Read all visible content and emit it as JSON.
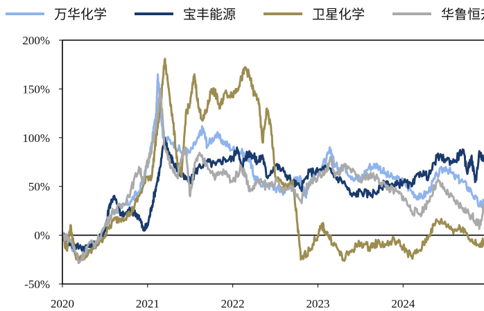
{
  "chart_data": {
    "type": "line",
    "title": "",
    "xlabel": "",
    "ylabel": "",
    "xlim": [
      2020,
      2024.95
    ],
    "ylim": [
      -50,
      200
    ],
    "x_ticks": [
      "2020",
      "2021",
      "2022",
      "2023",
      "2024"
    ],
    "y_ticks": [
      "200%",
      "150%",
      "100%",
      "50%",
      "0%",
      "-50%"
    ],
    "y_tick_values": [
      200,
      150,
      100,
      50,
      0,
      -50
    ],
    "zero_line": true,
    "grid": false,
    "legend_position": "top",
    "series": [
      {
        "name": "万华化学",
        "color": "#8fb4ec",
        "points": [
          [
            2020.0,
            0
          ],
          [
            2020.1,
            -10
          ],
          [
            2020.2,
            -25
          ],
          [
            2020.35,
            -12
          ],
          [
            2020.5,
            5
          ],
          [
            2020.6,
            25
          ],
          [
            2020.7,
            28
          ],
          [
            2020.8,
            35
          ],
          [
            2020.9,
            45
          ],
          [
            2021.0,
            70
          ],
          [
            2021.05,
            95
          ],
          [
            2021.1,
            125
          ],
          [
            2021.12,
            165
          ],
          [
            2021.18,
            100
          ],
          [
            2021.3,
            95
          ],
          [
            2021.4,
            85
          ],
          [
            2021.5,
            85
          ],
          [
            2021.6,
            100
          ],
          [
            2021.65,
            110
          ],
          [
            2021.7,
            92
          ],
          [
            2021.8,
            103
          ],
          [
            2021.9,
            95
          ],
          [
            2022.0,
            88
          ],
          [
            2022.1,
            85
          ],
          [
            2022.2,
            78
          ],
          [
            2022.25,
            60
          ],
          [
            2022.3,
            55
          ],
          [
            2022.4,
            52
          ],
          [
            2022.5,
            48
          ],
          [
            2022.6,
            45
          ],
          [
            2022.7,
            55
          ],
          [
            2022.8,
            58
          ],
          [
            2022.85,
            40
          ],
          [
            2022.9,
            55
          ],
          [
            2023.0,
            65
          ],
          [
            2023.1,
            78
          ],
          [
            2023.15,
            88
          ],
          [
            2023.2,
            70
          ],
          [
            2023.3,
            72
          ],
          [
            2023.4,
            60
          ],
          [
            2023.5,
            58
          ],
          [
            2023.6,
            70
          ],
          [
            2023.7,
            72
          ],
          [
            2023.8,
            62
          ],
          [
            2023.9,
            58
          ],
          [
            2024.0,
            55
          ],
          [
            2024.1,
            45
          ],
          [
            2024.2,
            38
          ],
          [
            2024.3,
            45
          ],
          [
            2024.4,
            62
          ],
          [
            2024.5,
            70
          ],
          [
            2024.6,
            60
          ],
          [
            2024.7,
            55
          ],
          [
            2024.8,
            45
          ],
          [
            2024.9,
            30
          ],
          [
            2024.95,
            35
          ]
        ]
      },
      {
        "name": "宝丰能源",
        "color": "#1a3a6b",
        "points": [
          [
            2020.0,
            0
          ],
          [
            2020.1,
            -10
          ],
          [
            2020.2,
            -12
          ],
          [
            2020.3,
            -12
          ],
          [
            2020.4,
            -8
          ],
          [
            2020.5,
            5
          ],
          [
            2020.55,
            30
          ],
          [
            2020.6,
            40
          ],
          [
            2020.7,
            20
          ],
          [
            2020.8,
            25
          ],
          [
            2020.9,
            20
          ],
          [
            2020.95,
            5
          ],
          [
            2021.0,
            10
          ],
          [
            2021.05,
            30
          ],
          [
            2021.1,
            50
          ],
          [
            2021.15,
            70
          ],
          [
            2021.2,
            100
          ],
          [
            2021.25,
            85
          ],
          [
            2021.3,
            75
          ],
          [
            2021.4,
            60
          ],
          [
            2021.5,
            55
          ],
          [
            2021.6,
            70
          ],
          [
            2021.7,
            75
          ],
          [
            2021.8,
            72
          ],
          [
            2021.9,
            78
          ],
          [
            2022.0,
            78
          ],
          [
            2022.05,
            90
          ],
          [
            2022.1,
            70
          ],
          [
            2022.15,
            80
          ],
          [
            2022.2,
            85
          ],
          [
            2022.25,
            80
          ],
          [
            2022.3,
            75
          ],
          [
            2022.35,
            82
          ],
          [
            2022.4,
            60
          ],
          [
            2022.5,
            72
          ],
          [
            2022.6,
            65
          ],
          [
            2022.7,
            55
          ],
          [
            2022.8,
            48
          ],
          [
            2022.9,
            65
          ],
          [
            2023.0,
            65
          ],
          [
            2023.1,
            70
          ],
          [
            2023.2,
            60
          ],
          [
            2023.3,
            55
          ],
          [
            2023.4,
            40
          ],
          [
            2023.5,
            45
          ],
          [
            2023.6,
            42
          ],
          [
            2023.7,
            45
          ],
          [
            2023.8,
            55
          ],
          [
            2023.9,
            50
          ],
          [
            2024.0,
            55
          ],
          [
            2024.1,
            50
          ],
          [
            2024.2,
            65
          ],
          [
            2024.3,
            60
          ],
          [
            2024.4,
            80
          ],
          [
            2024.5,
            78
          ],
          [
            2024.6,
            75
          ],
          [
            2024.7,
            88
          ],
          [
            2024.75,
            65
          ],
          [
            2024.8,
            80
          ],
          [
            2024.85,
            55
          ],
          [
            2024.9,
            85
          ],
          [
            2024.95,
            75
          ]
        ]
      },
      {
        "name": "卫星化学",
        "color": "#9c8c50",
        "points": [
          [
            2020.0,
            0
          ],
          [
            2020.05,
            -15
          ],
          [
            2020.1,
            10
          ],
          [
            2020.15,
            -20
          ],
          [
            2020.2,
            -25
          ],
          [
            2020.3,
            -20
          ],
          [
            2020.4,
            -10
          ],
          [
            2020.5,
            0
          ],
          [
            2020.6,
            15
          ],
          [
            2020.7,
            18
          ],
          [
            2020.8,
            22
          ],
          [
            2020.9,
            40
          ],
          [
            2021.0,
            60
          ],
          [
            2021.05,
            60
          ],
          [
            2021.1,
            100
          ],
          [
            2021.15,
            130
          ],
          [
            2021.2,
            180
          ],
          [
            2021.25,
            150
          ],
          [
            2021.3,
            115
          ],
          [
            2021.35,
            75
          ],
          [
            2021.4,
            60
          ],
          [
            2021.45,
            125
          ],
          [
            2021.5,
            135
          ],
          [
            2021.55,
            165
          ],
          [
            2021.6,
            130
          ],
          [
            2021.65,
            118
          ],
          [
            2021.7,
            130
          ],
          [
            2021.75,
            150
          ],
          [
            2021.8,
            145
          ],
          [
            2021.85,
            130
          ],
          [
            2021.9,
            145
          ],
          [
            2022.0,
            145
          ],
          [
            2022.05,
            150
          ],
          [
            2022.1,
            160
          ],
          [
            2022.15,
            172
          ],
          [
            2022.2,
            162
          ],
          [
            2022.25,
            145
          ],
          [
            2022.3,
            140
          ],
          [
            2022.35,
            95
          ],
          [
            2022.4,
            130
          ],
          [
            2022.45,
            110
          ],
          [
            2022.5,
            60
          ],
          [
            2022.6,
            50
          ],
          [
            2022.7,
            55
          ],
          [
            2022.75,
            20
          ],
          [
            2022.8,
            -25
          ],
          [
            2022.9,
            -15
          ],
          [
            2023.0,
            0
          ],
          [
            2023.05,
            10
          ],
          [
            2023.1,
            2
          ],
          [
            2023.2,
            -10
          ],
          [
            2023.3,
            -25
          ],
          [
            2023.4,
            -15
          ],
          [
            2023.5,
            -8
          ],
          [
            2023.6,
            -12
          ],
          [
            2023.7,
            -8
          ],
          [
            2023.8,
            -10
          ],
          [
            2023.9,
            -5
          ],
          [
            2024.0,
            -12
          ],
          [
            2024.1,
            -22
          ],
          [
            2024.2,
            -15
          ],
          [
            2024.3,
            0
          ],
          [
            2024.4,
            15
          ],
          [
            2024.5,
            12
          ],
          [
            2024.6,
            5
          ],
          [
            2024.7,
            8
          ],
          [
            2024.8,
            -5
          ],
          [
            2024.9,
            -12
          ],
          [
            2024.95,
            -5
          ]
        ]
      },
      {
        "name": "华鲁恒升",
        "color": "#aaaaaa",
        "points": [
          [
            2020.0,
            0
          ],
          [
            2020.1,
            -5
          ],
          [
            2020.2,
            -28
          ],
          [
            2020.3,
            -10
          ],
          [
            2020.4,
            -8
          ],
          [
            2020.5,
            10
          ],
          [
            2020.6,
            25
          ],
          [
            2020.7,
            30
          ],
          [
            2020.8,
            45
          ],
          [
            2020.9,
            70
          ],
          [
            2020.95,
            55
          ],
          [
            2021.0,
            75
          ],
          [
            2021.05,
            90
          ],
          [
            2021.1,
            110
          ],
          [
            2021.15,
            150
          ],
          [
            2021.2,
            90
          ],
          [
            2021.3,
            65
          ],
          [
            2021.35,
            60
          ],
          [
            2021.4,
            80
          ],
          [
            2021.45,
            90
          ],
          [
            2021.5,
            40
          ],
          [
            2021.55,
            70
          ],
          [
            2021.6,
            82
          ],
          [
            2021.7,
            72
          ],
          [
            2021.8,
            60
          ],
          [
            2021.9,
            65
          ],
          [
            2022.0,
            55
          ],
          [
            2022.1,
            70
          ],
          [
            2022.15,
            62
          ],
          [
            2022.2,
            45
          ],
          [
            2022.3,
            55
          ],
          [
            2022.4,
            50
          ],
          [
            2022.5,
            55
          ],
          [
            2022.6,
            45
          ],
          [
            2022.7,
            50
          ],
          [
            2022.8,
            35
          ],
          [
            2022.9,
            55
          ],
          [
            2023.0,
            60
          ],
          [
            2023.1,
            65
          ],
          [
            2023.15,
            80
          ],
          [
            2023.2,
            60
          ],
          [
            2023.3,
            70
          ],
          [
            2023.4,
            65
          ],
          [
            2023.5,
            55
          ],
          [
            2023.6,
            62
          ],
          [
            2023.7,
            58
          ],
          [
            2023.8,
            50
          ],
          [
            2023.9,
            45
          ],
          [
            2024.0,
            40
          ],
          [
            2024.1,
            25
          ],
          [
            2024.2,
            22
          ],
          [
            2024.3,
            35
          ],
          [
            2024.4,
            55
          ],
          [
            2024.5,
            45
          ],
          [
            2024.6,
            35
          ],
          [
            2024.7,
            28
          ],
          [
            2024.8,
            20
          ],
          [
            2024.85,
            15
          ],
          [
            2024.9,
            10
          ],
          [
            2024.95,
            30
          ]
        ]
      }
    ]
  }
}
